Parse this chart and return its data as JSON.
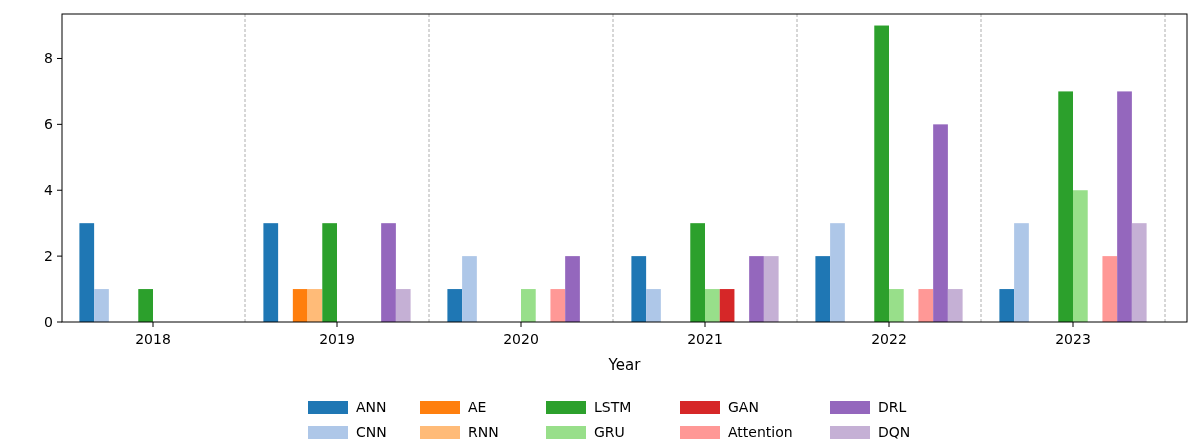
{
  "chart_data": {
    "type": "bar",
    "xlabel": "Year",
    "categories": [
      "2018",
      "2019",
      "2020",
      "2021",
      "2022",
      "2023"
    ],
    "series": [
      {
        "name": "ANN",
        "color": "#1f77b4",
        "values": [
          3,
          3,
          1,
          2,
          2,
          1
        ]
      },
      {
        "name": "CNN",
        "color": "#aec7e8",
        "values": [
          1,
          0,
          2,
          1,
          3,
          3
        ]
      },
      {
        "name": "AE",
        "color": "#ff7f0e",
        "values": [
          0,
          1,
          0,
          0,
          0,
          0
        ]
      },
      {
        "name": "RNN",
        "color": "#ffbb78",
        "values": [
          0,
          1,
          0,
          0,
          0,
          0
        ]
      },
      {
        "name": "LSTM",
        "color": "#2ca02c",
        "values": [
          1,
          3,
          0,
          3,
          9,
          7
        ]
      },
      {
        "name": "GRU",
        "color": "#98df8a",
        "values": [
          0,
          0,
          1,
          1,
          1,
          4
        ]
      },
      {
        "name": "GAN",
        "color": "#d62728",
        "values": [
          0,
          0,
          0,
          1,
          0,
          0
        ]
      },
      {
        "name": "Attention",
        "color": "#ff9896",
        "values": [
          0,
          0,
          1,
          0,
          1,
          2
        ]
      },
      {
        "name": "DRL",
        "color": "#9467bd",
        "values": [
          0,
          3,
          2,
          2,
          6,
          7
        ]
      },
      {
        "name": "DQN",
        "color": "#c5b0d5",
        "values": [
          0,
          1,
          0,
          2,
          1,
          3
        ]
      }
    ],
    "ylim": [
      0,
      9.35
    ],
    "yticks": [
      0,
      2,
      4,
      6,
      8
    ],
    "grid": "x",
    "legend": "bottom"
  }
}
